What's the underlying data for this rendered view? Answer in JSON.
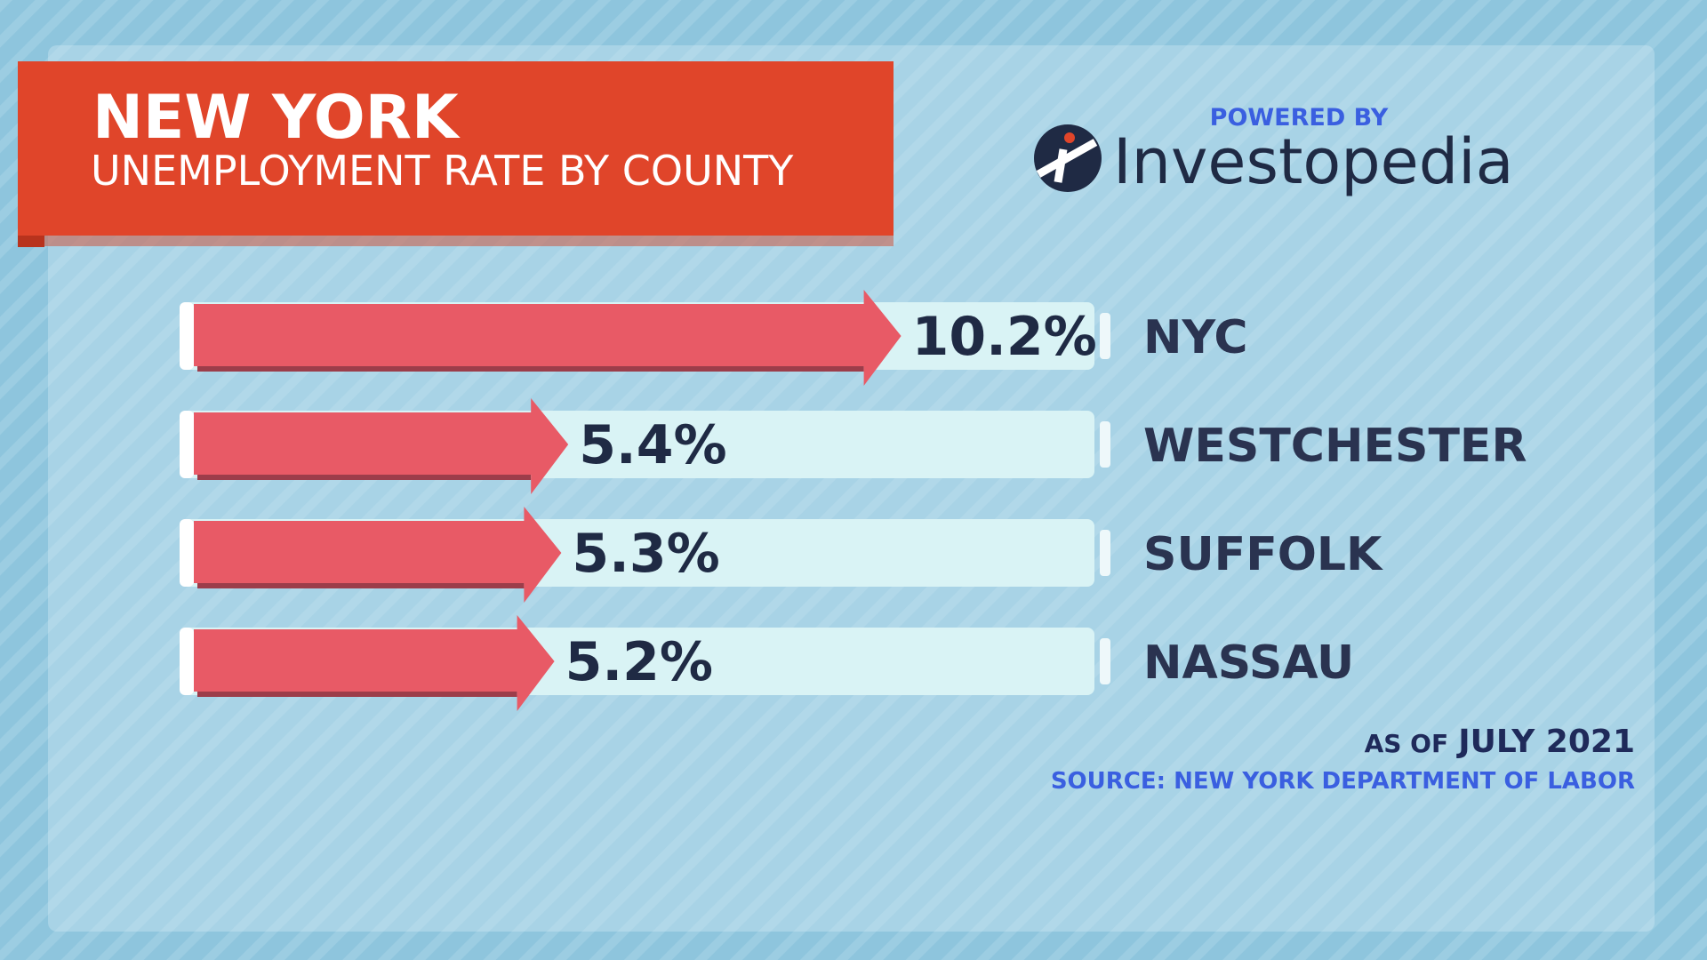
{
  "chart_data": {
    "type": "bar",
    "orientation": "horizontal",
    "title": "NEW YORK",
    "subtitle": "UNEMPLOYMENT RATE BY COUNTY",
    "categories": [
      "NYC",
      "WESTCHESTER",
      "SUFFOLK",
      "NASSAU"
    ],
    "values": [
      10.2,
      5.4,
      5.3,
      5.2
    ],
    "value_labels": [
      "10.2%",
      "5.4%",
      "5.3%",
      "5.2%"
    ],
    "color": "#e85a66",
    "branding": {
      "powered_by": "POWERED BY",
      "brand": "Investopedia"
    },
    "as_of": {
      "prefix": "AS OF",
      "date": "JULY 2021"
    },
    "source": "SOURCE: NEW YORK DEPARTMENT OF LABOR"
  }
}
